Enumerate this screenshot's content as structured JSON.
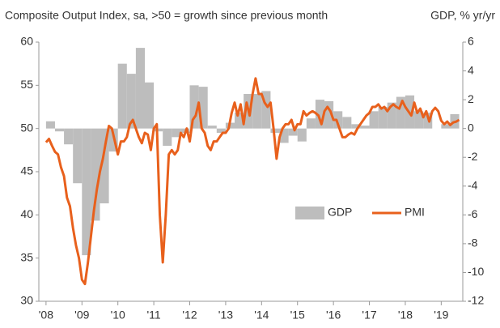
{
  "chart_data": {
    "type": "bar-line",
    "title": "Composite Output Index, sa, >50 = growth since previous month",
    "y2_title": "GDP, % yr/yr",
    "xlim": [
      2007.8,
      2019.6
    ],
    "xticks": [
      {
        "value": 2008,
        "label": "'08"
      },
      {
        "value": 2009,
        "label": "'09"
      },
      {
        "value": 2010,
        "label": "'10"
      },
      {
        "value": 2011,
        "label": "'11"
      },
      {
        "value": 2012,
        "label": "'12"
      },
      {
        "value": 2013,
        "label": "'13"
      },
      {
        "value": 2014,
        "label": "'14"
      },
      {
        "value": 2015,
        "label": "'15"
      },
      {
        "value": 2016,
        "label": "'16"
      },
      {
        "value": 2017,
        "label": "'17"
      },
      {
        "value": 2018,
        "label": "'18"
      },
      {
        "value": 2019,
        "label": "'19"
      }
    ],
    "ylim": [
      30,
      60
    ],
    "yticks": [
      30,
      35,
      40,
      45,
      50,
      55,
      60
    ],
    "y2lim": [
      -12,
      6
    ],
    "y2ticks": [
      -12,
      -10,
      -8,
      -6,
      -4,
      -2,
      0,
      2,
      4,
      6
    ],
    "series": [
      {
        "name": "GDP",
        "type": "bar",
        "axis": "y2",
        "color": "#bdbdbd",
        "x": [
          2008,
          2008.25,
          2008.5,
          2008.75,
          2009,
          2009.25,
          2009.5,
          2009.75,
          2010,
          2010.25,
          2010.5,
          2010.75,
          2011,
          2011.25,
          2011.5,
          2011.75,
          2012,
          2012.25,
          2012.5,
          2012.75,
          2013,
          2013.25,
          2013.5,
          2013.75,
          2014,
          2014.25,
          2014.5,
          2014.75,
          2015,
          2015.25,
          2015.5,
          2015.75,
          2016,
          2016.25,
          2016.5,
          2016.75,
          2017,
          2017.25,
          2017.5,
          2017.75,
          2018,
          2018.25,
          2018.5,
          2018.75,
          2019,
          2019.25
        ],
        "values": [
          0.5,
          -0.2,
          -1.1,
          -3.8,
          -8.8,
          -6.4,
          -5.2,
          -1.6,
          4.5,
          3.8,
          5.6,
          3.2,
          -0.2,
          -1.2,
          -0.6,
          -0.3,
          3.0,
          2.9,
          0.2,
          -0.3,
          0.4,
          1.1,
          2.4,
          2.4,
          2.6,
          -0.3,
          -1.0,
          -0.5,
          -0.9,
          0.7,
          2.0,
          1.9,
          1.2,
          0.8,
          0.3,
          0.2,
          1.2,
          1.5,
          1.8,
          2.2,
          2.3,
          1.2,
          1.1,
          0.0,
          0.3,
          1.0
        ]
      },
      {
        "name": "PMI",
        "type": "line",
        "axis": "y",
        "color": "#e8601c",
        "x": [
          2008,
          2008.083,
          2008.167,
          2008.25,
          2008.333,
          2008.417,
          2008.5,
          2008.583,
          2008.667,
          2008.75,
          2008.833,
          2008.917,
          2009,
          2009.083,
          2009.167,
          2009.25,
          2009.333,
          2009.417,
          2009.5,
          2009.583,
          2009.667,
          2009.75,
          2009.833,
          2009.917,
          2010,
          2010.083,
          2010.167,
          2010.25,
          2010.333,
          2010.417,
          2010.5,
          2010.583,
          2010.667,
          2010.75,
          2010.833,
          2010.917,
          2011,
          2011.083,
          2011.167,
          2011.25,
          2011.333,
          2011.417,
          2011.5,
          2011.583,
          2011.667,
          2011.75,
          2011.833,
          2011.917,
          2012,
          2012.083,
          2012.167,
          2012.25,
          2012.333,
          2012.417,
          2012.5,
          2012.583,
          2012.667,
          2012.75,
          2012.833,
          2012.917,
          2013,
          2013.083,
          2013.167,
          2013.25,
          2013.333,
          2013.417,
          2013.5,
          2013.583,
          2013.667,
          2013.75,
          2013.833,
          2013.917,
          2014,
          2014.083,
          2014.167,
          2014.25,
          2014.333,
          2014.417,
          2014.5,
          2014.583,
          2014.667,
          2014.75,
          2014.833,
          2014.917,
          2015,
          2015.083,
          2015.167,
          2015.25,
          2015.333,
          2015.417,
          2015.5,
          2015.583,
          2015.667,
          2015.75,
          2015.833,
          2015.917,
          2016,
          2016.083,
          2016.167,
          2016.25,
          2016.333,
          2016.417,
          2016.5,
          2016.583,
          2016.667,
          2016.75,
          2016.833,
          2016.917,
          2017,
          2017.083,
          2017.167,
          2017.25,
          2017.333,
          2017.417,
          2017.5,
          2017.583,
          2017.667,
          2017.75,
          2017.833,
          2017.917,
          2018,
          2018.083,
          2018.167,
          2018.25,
          2018.333,
          2018.417,
          2018.5,
          2018.583,
          2018.667,
          2018.75,
          2018.833,
          2018.917,
          2019,
          2019.083,
          2019.167,
          2019.25,
          2019.333,
          2019.417,
          2019.5
        ],
        "values": [
          48.4,
          48.8,
          48.0,
          47.3,
          47.0,
          45.5,
          44.5,
          42.0,
          41.0,
          38.5,
          36.5,
          35.0,
          32.5,
          32.0,
          34.5,
          37.5,
          40.5,
          43.0,
          45.0,
          46.5,
          48.5,
          50.3,
          50.0,
          48.5,
          47.0,
          48.5,
          48.5,
          49.0,
          50.5,
          51.0,
          50.0,
          49.0,
          48.3,
          49.5,
          49.3,
          47.5,
          50.0,
          50.5,
          40.0,
          34.5,
          40.0,
          47.0,
          47.5,
          47.0,
          47.5,
          49.5,
          49.0,
          50.0,
          48.5,
          51.0,
          51.5,
          53.0,
          50.0,
          49.5,
          48.0,
          47.5,
          48.5,
          48.5,
          49.0,
          49.5,
          49.5,
          50.0,
          51.8,
          53.0,
          51.5,
          52.8,
          50.5,
          53.0,
          51.5,
          54.0,
          55.8,
          54.0,
          54.0,
          53.0,
          52.5,
          53.0,
          50.0,
          46.5,
          49.0,
          50.0,
          50.5,
          50.5,
          51.0,
          49.8,
          50.5,
          50.5,
          52.0,
          51.5,
          51.8,
          52.0,
          51.8,
          51.5,
          50.5,
          52.0,
          52.5,
          52.0,
          51.0,
          51.0,
          50.0,
          49.0,
          49.0,
          49.3,
          49.5,
          49.3,
          50.0,
          50.5,
          51.0,
          51.5,
          51.8,
          52.5,
          52.5,
          52.8,
          52.3,
          52.5,
          52.0,
          52.5,
          52.8,
          52.5,
          52.3,
          53.2,
          52.5,
          52.0,
          51.5,
          53.0,
          51.8,
          52.3,
          51.3,
          52.0,
          50.8,
          52.0,
          52.4,
          52.0,
          50.9,
          50.5,
          50.8,
          50.4,
          50.7,
          50.8,
          51.0
        ]
      }
    ]
  }
}
